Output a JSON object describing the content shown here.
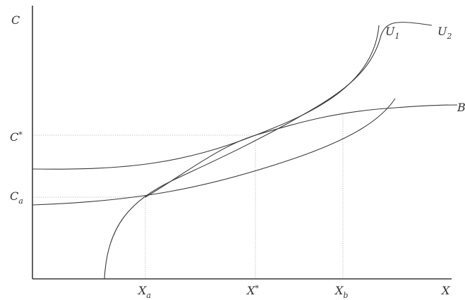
{
  "axes": {
    "y_label": "C",
    "x_label": "X"
  },
  "y_ticks": [
    {
      "main": "C",
      "sup": "*",
      "sub": ""
    },
    {
      "main": "C",
      "sup": "",
      "sub": "a"
    }
  ],
  "x_ticks": [
    {
      "main": "X",
      "sup": "",
      "sub": "a"
    },
    {
      "main": "X",
      "sup": "*",
      "sub": ""
    },
    {
      "main": "X",
      "sup": "",
      "sub": "b"
    }
  ],
  "curves": {
    "u1": {
      "main": "U",
      "sub": "1"
    },
    "u2": {
      "main": "U",
      "sub": "2"
    },
    "b": {
      "main": "B"
    }
  },
  "colors": {
    "ink": "#3a3a3a",
    "guide": "#b9b9b9"
  }
}
